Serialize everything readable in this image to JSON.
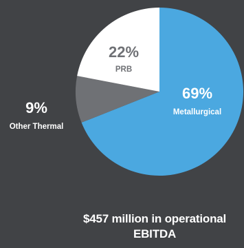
{
  "chart_data": {
    "type": "pie",
    "slices": [
      {
        "label": "Metallurgical",
        "value": 69,
        "value_label": "69%",
        "color": "#4ba8e0",
        "label_color": "#ffffff"
      },
      {
        "label": "Other Thermal",
        "value": 9,
        "value_label": "9%",
        "color": "#6f7175",
        "label_color": "#ffffff"
      },
      {
        "label": "PRB",
        "value": 22,
        "value_label": "22%",
        "color": "#ffffff",
        "label_color": "#6f7175"
      }
    ],
    "start_angle_deg": 0,
    "direction": "clockwise",
    "caption_line1": "$457 million in operational",
    "caption_line2": "EBITDA"
  },
  "colors": {
    "background": "#414346"
  }
}
